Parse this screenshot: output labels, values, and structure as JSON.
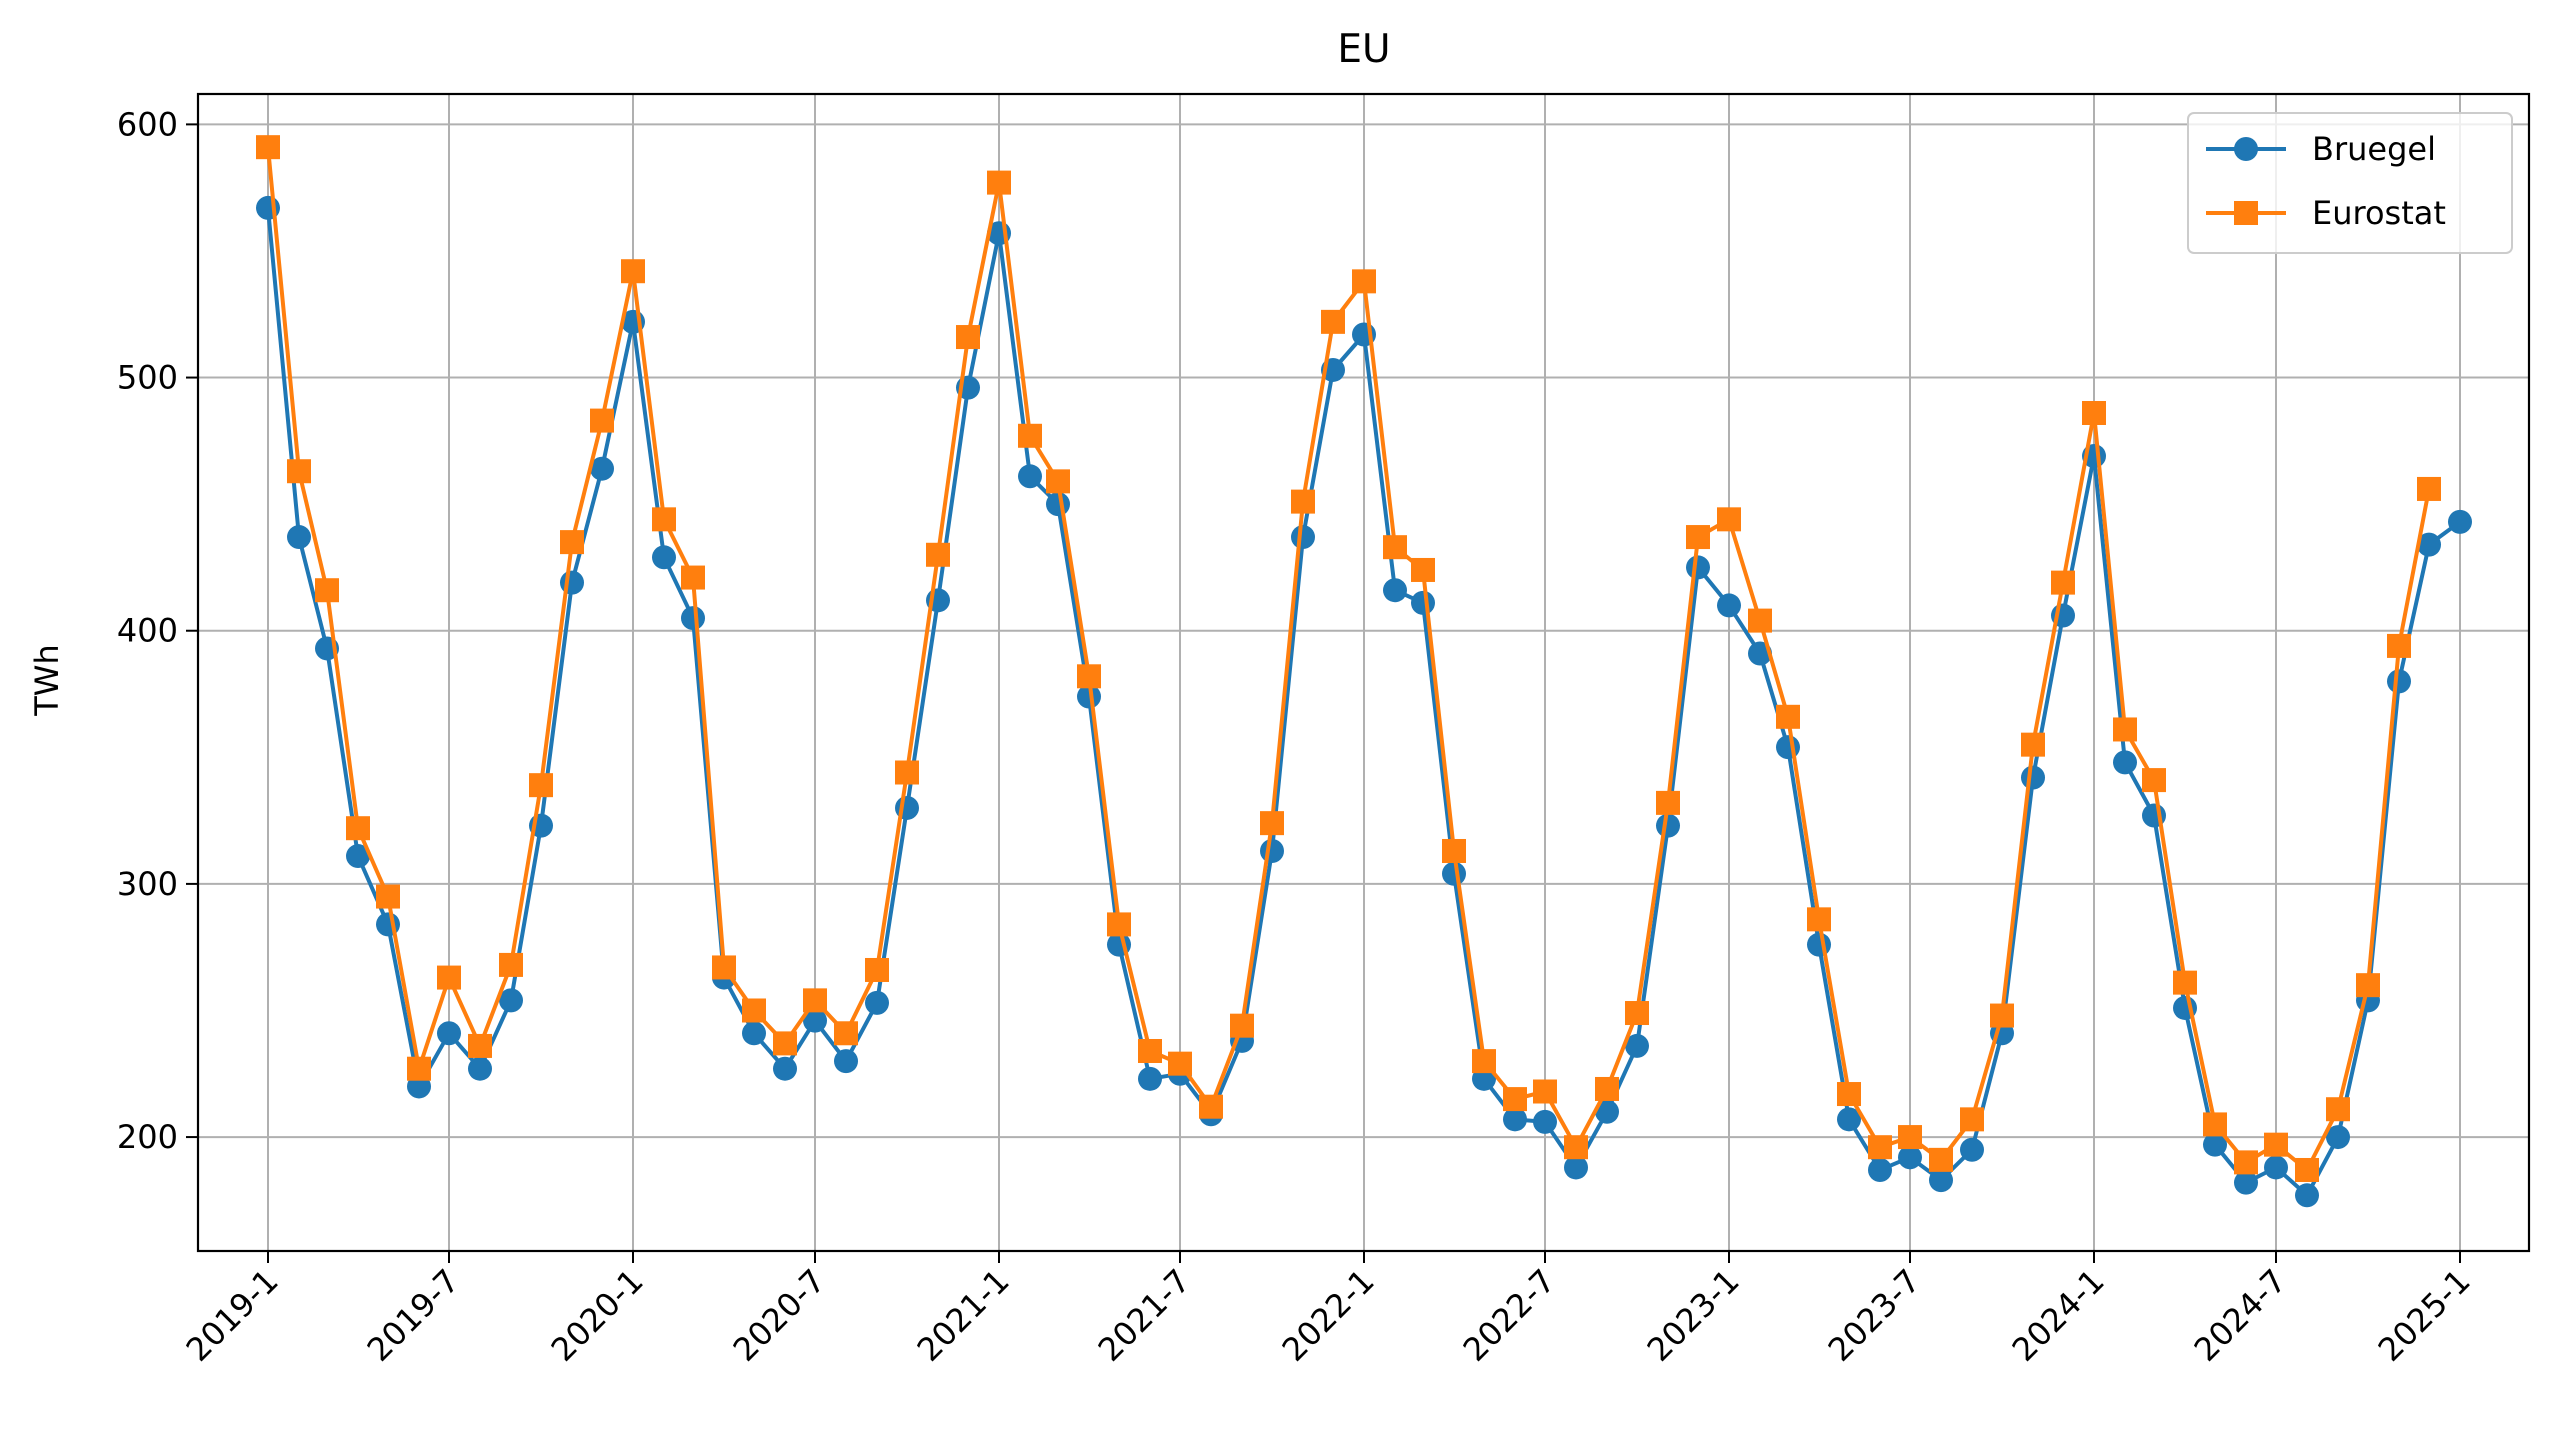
{
  "chart_data": {
    "type": "line",
    "title": "EU",
    "xlabel": "",
    "ylabel": "TWh",
    "ylim": [
      155,
      612
    ],
    "xlim": [
      "2018-10-23",
      "2025-03-11"
    ],
    "yticks": [
      200,
      300,
      400,
      500,
      600
    ],
    "xticks": [
      "2019-1",
      "2019-7",
      "2020-1",
      "2020-7",
      "2021-1",
      "2021-7",
      "2022-1",
      "2022-7",
      "2023-1",
      "2023-7",
      "2024-1",
      "2024-7",
      "2025-1"
    ],
    "grid": true,
    "legend_position": "top-right",
    "x": [
      "2019-1",
      "2019-2",
      "2019-3",
      "2019-4",
      "2019-5",
      "2019-6",
      "2019-7",
      "2019-8",
      "2019-9",
      "2019-10",
      "2019-11",
      "2019-12",
      "2020-1",
      "2020-2",
      "2020-3",
      "2020-4",
      "2020-5",
      "2020-6",
      "2020-7",
      "2020-8",
      "2020-9",
      "2020-10",
      "2020-11",
      "2020-12",
      "2021-1",
      "2021-2",
      "2021-3",
      "2021-4",
      "2021-5",
      "2021-6",
      "2021-7",
      "2021-8",
      "2021-9",
      "2021-10",
      "2021-11",
      "2021-12",
      "2022-1",
      "2022-2",
      "2022-3",
      "2022-4",
      "2022-5",
      "2022-6",
      "2022-7",
      "2022-8",
      "2022-9",
      "2022-10",
      "2022-11",
      "2022-12",
      "2023-1",
      "2023-2",
      "2023-3",
      "2023-4",
      "2023-5",
      "2023-6",
      "2023-7",
      "2023-8",
      "2023-9",
      "2023-10",
      "2023-11",
      "2023-12",
      "2024-1",
      "2024-2",
      "2024-3",
      "2024-4",
      "2024-5",
      "2024-6",
      "2024-7",
      "2024-8",
      "2024-9",
      "2024-10",
      "2024-11",
      "2024-12",
      "2025-1"
    ],
    "series": [
      {
        "name": "Bruegel",
        "color": "#1f77b4",
        "marker": "circle",
        "values": [
          567,
          437,
          393,
          311,
          284,
          220,
          241,
          227,
          254,
          323,
          419,
          464,
          522,
          429,
          405,
          263,
          241,
          227,
          246,
          230,
          253,
          330,
          412,
          496,
          557,
          461,
          450,
          374,
          276,
          223,
          225,
          209,
          238,
          313,
          437,
          503,
          517,
          416,
          411,
          304,
          223,
          207,
          206,
          188,
          210,
          236,
          323,
          425,
          410,
          391,
          354,
          276,
          207,
          187,
          192,
          183,
          195,
          241,
          342,
          406,
          469,
          348,
          327,
          251,
          197,
          182,
          188,
          177,
          200,
          254,
          380,
          434,
          443
        ]
      },
      {
        "name": "Eurostat",
        "color": "#ff7f0e",
        "marker": "square",
        "values": [
          591,
          463,
          416,
          322,
          295,
          227,
          263,
          236,
          268,
          339,
          435,
          483,
          542,
          444,
          421,
          267,
          250,
          237,
          254,
          241,
          266,
          344,
          430,
          516,
          577,
          477,
          459,
          382,
          284,
          234,
          229,
          212,
          244,
          324,
          451,
          522,
          538,
          433,
          424,
          313,
          230,
          215,
          218,
          196,
          219,
          249,
          332,
          437,
          444,
          404,
          366,
          286,
          217,
          196,
          200,
          191,
          207,
          248,
          355,
          419,
          486,
          361,
          341,
          261,
          205,
          190,
          197,
          187,
          211,
          260,
          394,
          456,
          null
        ]
      }
    ]
  }
}
